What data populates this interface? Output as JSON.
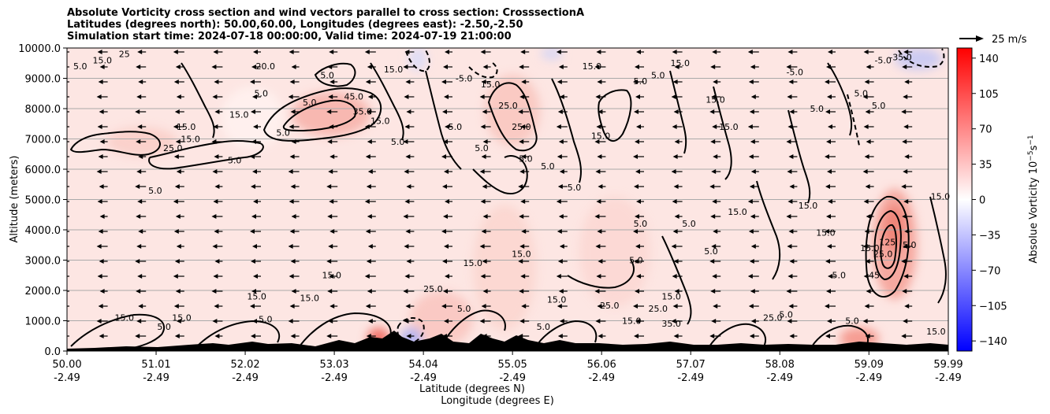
{
  "titles": [
    "Absolute Vorticity cross section and wind vectors parallel to cross section: CrosssectionA",
    "Latitudes (degrees north): 50.00,60.00, Longitudes (degrees east): -2.50,-2.50",
    "Simulation start time: 2024-07-18 00:00:00, Valid time: 2024-07-19 21:00:00"
  ],
  "chart_data": {
    "type": "heatmap",
    "subtype": "cross-section with contours and wind vectors",
    "ylabel": "Altitude (meters)",
    "xlabel_lat": "Latitude (degrees N)",
    "xlabel_lon": "Longitude (degrees E)",
    "ylim": [
      0,
      10000
    ],
    "yticks": [
      "0.0",
      "1000.0",
      "2000.0",
      "3000.0",
      "4000.0",
      "5000.0",
      "6000.0",
      "7000.0",
      "8000.0",
      "9000.0",
      "10000.0"
    ],
    "xlim": [
      50.0,
      59.99
    ],
    "xticks_lat": [
      "50.00",
      "51.01",
      "52.02",
      "53.03",
      "54.04",
      "55.05",
      "56.06",
      "57.07",
      "58.08",
      "59.09",
      "59.99"
    ],
    "xticks_lon": [
      "-2.49",
      "-2.49",
      "-2.49",
      "-2.49",
      "-2.49",
      "-2.49",
      "-2.49",
      "-2.49",
      "-2.49",
      "-2.49",
      "-2.49"
    ],
    "grid": "horizontal",
    "colorbar": {
      "label": "Absolue Vorticity 10",
      "label_exp": "−5",
      "label_unit": "s",
      "label_unit_exp": "−1",
      "ticks": [
        140,
        105,
        70,
        35,
        0,
        -35,
        -70,
        -105,
        -140
      ],
      "tick_labels": [
        "140",
        "105",
        "70",
        "35",
        "0",
        "−35",
        "−70",
        "−105",
        "−140"
      ],
      "range": [
        -150,
        150
      ],
      "colormap": "bwr"
    },
    "quiver_key": "25 m/s",
    "contour_labels": [
      {
        "text": "5.0",
        "lat": 50.15,
        "alt": 9300
      },
      {
        "text": "15.0",
        "lat": 50.4,
        "alt": 9500
      },
      {
        "text": "25",
        "lat": 50.65,
        "alt": 9700
      },
      {
        "text": "25.0",
        "lat": 51.2,
        "alt": 6600
      },
      {
        "text": "15.0",
        "lat": 51.35,
        "alt": 7300
      },
      {
        "text": "15.0",
        "lat": 51.4,
        "alt": 6900
      },
      {
        "text": "5.0",
        "lat": 51.9,
        "alt": 6200
      },
      {
        "text": "5.0",
        "lat": 51.0,
        "alt": 5200
      },
      {
        "text": "15.0",
        "lat": 51.95,
        "alt": 7700
      },
      {
        "text": "5.0",
        "lat": 52.2,
        "alt": 8400
      },
      {
        "text": "20.0",
        "lat": 52.25,
        "alt": 9300
      },
      {
        "text": "5.0",
        "lat": 52.45,
        "alt": 7100
      },
      {
        "text": "5.0",
        "lat": 52.75,
        "alt": 8100
      },
      {
        "text": "5.0",
        "lat": 52.95,
        "alt": 9000
      },
      {
        "text": "45.0",
        "lat": 53.25,
        "alt": 8300
      },
      {
        "text": "35.0",
        "lat": 53.35,
        "alt": 7800
      },
      {
        "text": "15.0",
        "lat": 53.55,
        "alt": 7500
      },
      {
        "text": "15.0",
        "lat": 53.7,
        "alt": 9200
      },
      {
        "text": "5.0",
        "lat": 53.75,
        "alt": 6800
      },
      {
        "text": "5.0",
        "lat": 54.4,
        "alt": 7300
      },
      {
        "text": "-5.0",
        "lat": 54.5,
        "alt": 8900
      },
      {
        "text": "5.0",
        "lat": 54.7,
        "alt": 6600
      },
      {
        "text": "15.0",
        "lat": 54.8,
        "alt": 8700
      },
      {
        "text": "25.0",
        "lat": 55.0,
        "alt": 8000
      },
      {
        "text": "25.0",
        "lat": 55.15,
        "alt": 7300
      },
      {
        "text": "5.0",
        "lat": 55.2,
        "alt": 6250
      },
      {
        "text": "5.0",
        "lat": 55.45,
        "alt": 6000
      },
      {
        "text": "5.0",
        "lat": 55.75,
        "alt": 5300
      },
      {
        "text": "15.0",
        "lat": 55.95,
        "alt": 9300
      },
      {
        "text": "15.0",
        "lat": 56.05,
        "alt": 7000
      },
      {
        "text": "5.0",
        "lat": 56.5,
        "alt": 8800
      },
      {
        "text": "15.0",
        "lat": 56.95,
        "alt": 9400
      },
      {
        "text": "5.0",
        "lat": 56.7,
        "alt": 9000
      },
      {
        "text": "15.0",
        "lat": 57.35,
        "alt": 8200
      },
      {
        "text": "15.0",
        "lat": 57.5,
        "alt": 7300
      },
      {
        "text": "-5.0",
        "lat": 58.25,
        "alt": 9100
      },
      {
        "text": "5.0",
        "lat": 58.5,
        "alt": 7900
      },
      {
        "text": "-5.0",
        "lat": 59.25,
        "alt": 9500
      },
      {
        "text": "-35.0",
        "lat": 59.45,
        "alt": 9600
      },
      {
        "text": "5.0",
        "lat": 59.0,
        "alt": 8400
      },
      {
        "text": "5.0",
        "lat": 59.2,
        "alt": 8000
      },
      {
        "text": "5.0",
        "lat": 57.05,
        "alt": 4100
      },
      {
        "text": "15.0",
        "lat": 57.6,
        "alt": 4500
      },
      {
        "text": "5.0",
        "lat": 57.3,
        "alt": 3200
      },
      {
        "text": "15.0",
        "lat": 58.4,
        "alt": 4700
      },
      {
        "text": "15.0",
        "lat": 58.6,
        "alt": 3800
      },
      {
        "text": "5.0",
        "lat": 58.75,
        "alt": 2400
      },
      {
        "text": "15.0",
        "lat": 59.1,
        "alt": 3300
      },
      {
        "text": "25.0",
        "lat": 59.25,
        "alt": 3100
      },
      {
        "text": "125",
        "lat": 59.3,
        "alt": 3500
      },
      {
        "text": "45",
        "lat": 59.15,
        "alt": 2400
      },
      {
        "text": "5.0",
        "lat": 59.55,
        "alt": 3400
      },
      {
        "text": "15.0",
        "lat": 59.9,
        "alt": 5000
      },
      {
        "text": "5.0",
        "lat": 56.45,
        "alt": 2900
      },
      {
        "text": "5.0",
        "lat": 56.5,
        "alt": 4100
      },
      {
        "text": "15.0",
        "lat": 55.15,
        "alt": 3100
      },
      {
        "text": "15.0",
        "lat": 54.6,
        "alt": 2800
      },
      {
        "text": "15.0",
        "lat": 53.0,
        "alt": 2400
      },
      {
        "text": "15.0",
        "lat": 52.75,
        "alt": 1650
      },
      {
        "text": "15.0",
        "lat": 52.15,
        "alt": 1700
      },
      {
        "text": "15.0",
        "lat": 50.65,
        "alt": 1000
      },
      {
        "text": "5.0",
        "lat": 51.1,
        "alt": 700
      },
      {
        "text": "15.0",
        "lat": 51.3,
        "alt": 1000
      },
      {
        "text": "5.0",
        "lat": 52.25,
        "alt": 950
      },
      {
        "text": "25.0",
        "lat": 54.15,
        "alt": 1950
      },
      {
        "text": "5.0",
        "lat": 54.5,
        "alt": 1300
      },
      {
        "text": "15.0",
        "lat": 55.55,
        "alt": 1600
      },
      {
        "text": "25.0",
        "lat": 56.15,
        "alt": 1400
      },
      {
        "text": "15.0",
        "lat": 56.4,
        "alt": 900
      },
      {
        "text": "25.0",
        "lat": 56.7,
        "alt": 1300
      },
      {
        "text": "15.0",
        "lat": 56.85,
        "alt": 1700
      },
      {
        "text": "35.0",
        "lat": 56.85,
        "alt": 800
      },
      {
        "text": "25.0",
        "lat": 58.0,
        "alt": 1000
      },
      {
        "text": "5.0",
        "lat": 58.15,
        "alt": 1100
      },
      {
        "text": "5.0",
        "lat": 58.9,
        "alt": 900
      },
      {
        "text": "15.0",
        "lat": 59.85,
        "alt": 550
      },
      {
        "text": "5.0",
        "lat": 55.4,
        "alt": 700
      }
    ]
  }
}
